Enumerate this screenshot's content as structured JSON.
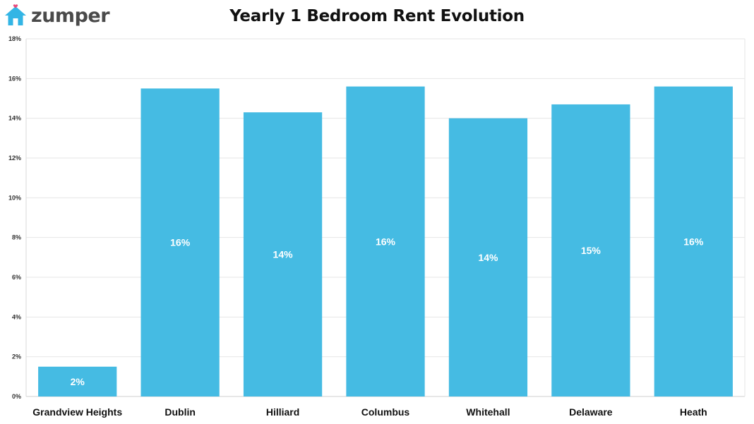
{
  "brand": {
    "name": "zumper",
    "logo_icon": "house-icon",
    "accent": "#33b5e5",
    "heart": "#e8497a"
  },
  "chart_data": {
    "type": "bar",
    "title": "Yearly 1 Bedroom Rent Evolution",
    "xlabel": "",
    "ylabel": "",
    "categories": [
      "Grandview Heights",
      "Dublin",
      "Hilliard",
      "Columbus",
      "Whitehall",
      "Delaware",
      "Heath"
    ],
    "values": [
      1.5,
      15.5,
      14.3,
      15.6,
      14.0,
      14.7,
      15.6
    ],
    "data_labels": [
      "2%",
      "16%",
      "14%",
      "16%",
      "14%",
      "15%",
      "16%"
    ],
    "ylim": [
      0,
      18
    ],
    "yticks": [
      0,
      2,
      4,
      6,
      8,
      10,
      12,
      14,
      16,
      18
    ],
    "ytick_labels": [
      "0%",
      "2%",
      "4%",
      "6%",
      "8%",
      "10%",
      "12%",
      "14%",
      "16%",
      "18%"
    ],
    "grid": true,
    "legend": "none",
    "bar_color": "#45bbe3"
  }
}
